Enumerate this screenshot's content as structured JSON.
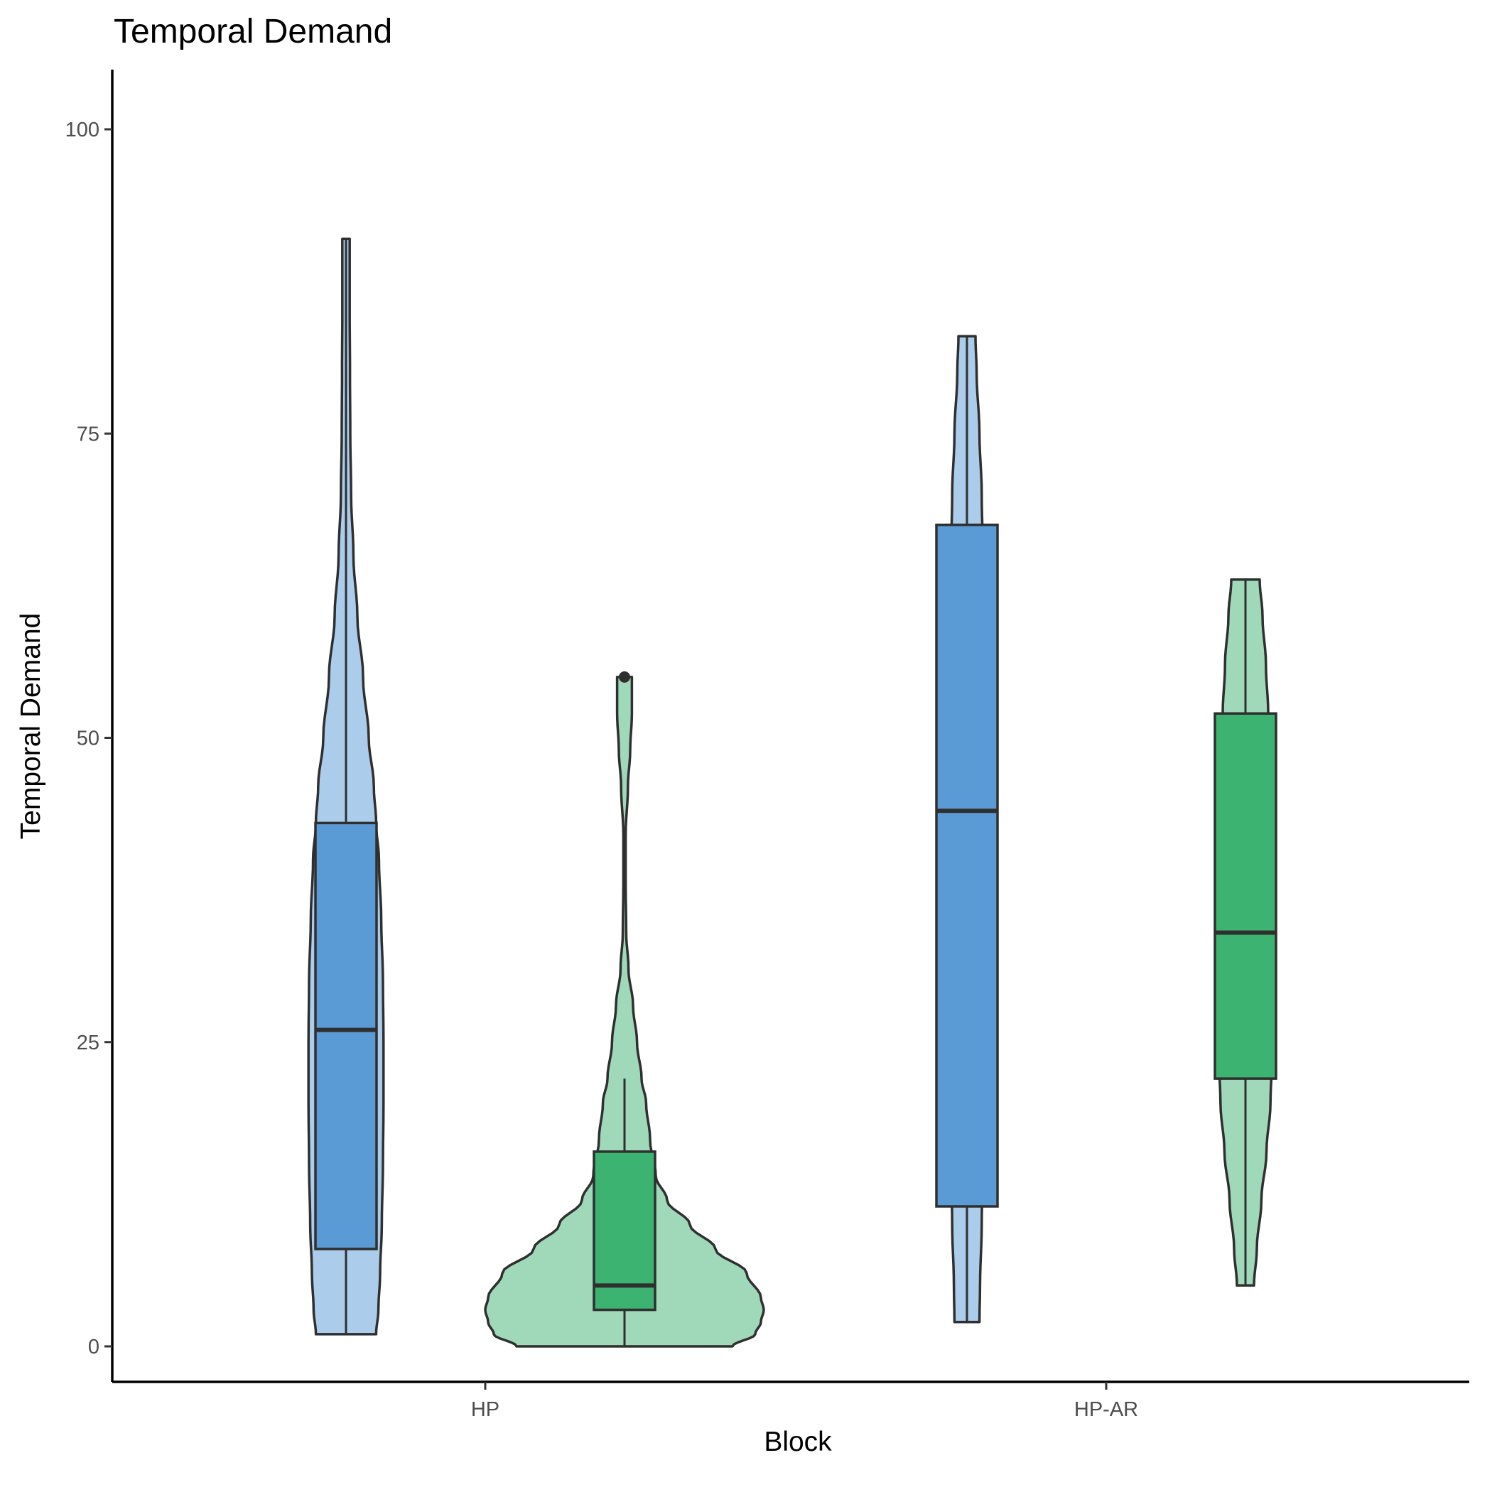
{
  "chart_data": {
    "type": "violin",
    "title": "Temporal Demand",
    "xlabel": "Block",
    "ylabel": "Temporal Demand",
    "ylim": [
      -5,
      105
    ],
    "yticks": [
      0,
      25,
      50,
      75,
      100
    ],
    "categories": [
      "HP",
      "HP-AR"
    ],
    "grid": false,
    "legend": "none",
    "groups": [
      {
        "category": "HP",
        "violin_color": "#abcdeb",
        "box_color": "#5b9bd5",
        "violin_min": 1,
        "violin_max": 91,
        "density": [
          [
            1,
            0.053
          ],
          [
            3,
            0.057
          ],
          [
            6,
            0.06
          ],
          [
            10,
            0.063
          ],
          [
            15,
            0.065
          ],
          [
            20,
            0.066
          ],
          [
            25,
            0.066
          ],
          [
            30,
            0.065
          ],
          [
            35,
            0.062
          ],
          [
            40,
            0.058
          ],
          [
            43,
            0.053
          ],
          [
            46,
            0.049
          ],
          [
            50,
            0.04
          ],
          [
            55,
            0.03
          ],
          [
            60,
            0.02
          ],
          [
            65,
            0.013
          ],
          [
            70,
            0.009
          ],
          [
            75,
            0.0075
          ],
          [
            80,
            0.007
          ],
          [
            85,
            0.0065
          ],
          [
            91,
            0.0065
          ]
        ],
        "box": {
          "min": 1,
          "q1": 8,
          "median": 26,
          "q3": 43,
          "max": 91
        },
        "outliers": []
      },
      {
        "category": "HP",
        "violin_color": "#9fd9b9",
        "box_color": "#3cb371",
        "violin_min": 0,
        "violin_max": 55,
        "density": [
          [
            0,
            0.19
          ],
          [
            1,
            0.23
          ],
          [
            2,
            0.24
          ],
          [
            3,
            0.245
          ],
          [
            4,
            0.24
          ],
          [
            6,
            0.215
          ],
          [
            8,
            0.16
          ],
          [
            10,
            0.115
          ],
          [
            12,
            0.075
          ],
          [
            14,
            0.055
          ],
          [
            17,
            0.045
          ],
          [
            20,
            0.038
          ],
          [
            22,
            0.03
          ],
          [
            25,
            0.022
          ],
          [
            28,
            0.015
          ],
          [
            31,
            0.007
          ],
          [
            34,
            0.003
          ],
          [
            38,
            0.002
          ],
          [
            42,
            0.002
          ],
          [
            46,
            0.006
          ],
          [
            49,
            0.01
          ],
          [
            52,
            0.013
          ],
          [
            54,
            0.013
          ],
          [
            55,
            0.013
          ]
        ],
        "box": {
          "min": 0,
          "q1": 3,
          "median": 5,
          "q3": 16,
          "max": 22
        },
        "outliers": [
          55
        ]
      },
      {
        "category": "HP-AR",
        "violin_color": "#abcdeb",
        "box_color": "#5b9bd5",
        "violin_min": 2,
        "violin_max": 83,
        "density": [
          [
            2,
            0.022
          ],
          [
            5,
            0.023
          ],
          [
            10,
            0.026
          ],
          [
            15,
            0.028
          ],
          [
            20,
            0.029
          ],
          [
            25,
            0.03
          ],
          [
            30,
            0.03
          ],
          [
            35,
            0.03
          ],
          [
            40,
            0.03
          ],
          [
            45,
            0.03
          ],
          [
            50,
            0.029
          ],
          [
            55,
            0.029
          ],
          [
            60,
            0.029
          ],
          [
            65,
            0.028
          ],
          [
            70,
            0.026
          ],
          [
            75,
            0.022
          ],
          [
            80,
            0.017
          ],
          [
            83,
            0.015
          ]
        ],
        "box": {
          "min": 2,
          "q1": 11.5,
          "median": 44,
          "q3": 67.5,
          "max": 83
        },
        "outliers": []
      },
      {
        "category": "HP-AR",
        "violin_color": "#9fd9b9",
        "box_color": "#3cb371",
        "violin_min": 5,
        "violin_max": 63,
        "density": [
          [
            5,
            0.015
          ],
          [
            8,
            0.02
          ],
          [
            12,
            0.028
          ],
          [
            16,
            0.037
          ],
          [
            20,
            0.044
          ],
          [
            24,
            0.047
          ],
          [
            28,
            0.048
          ],
          [
            32,
            0.046
          ],
          [
            36,
            0.042
          ],
          [
            40,
            0.04
          ],
          [
            44,
            0.04
          ],
          [
            48,
            0.041
          ],
          [
            52,
            0.04
          ],
          [
            56,
            0.036
          ],
          [
            60,
            0.03
          ],
          [
            63,
            0.025
          ]
        ],
        "box": {
          "min": 5,
          "q1": 22,
          "median": 34,
          "q3": 52,
          "max": 63
        },
        "outliers": []
      }
    ]
  }
}
